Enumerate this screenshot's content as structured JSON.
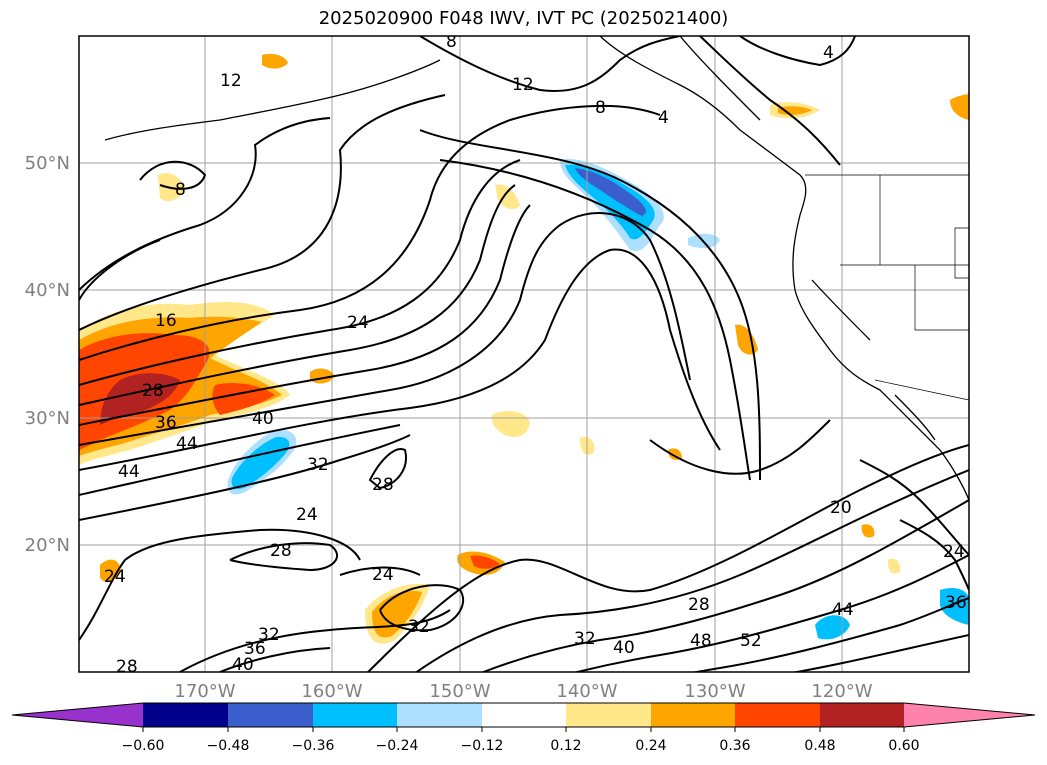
{
  "title": "2025020900 F048 IWV, IVT PC (2025021400)",
  "lat_labels": [
    "50°N",
    "40°N",
    "30°N",
    "20°N"
  ],
  "lon_labels": [
    "170°W",
    "160°W",
    "150°W",
    "140°W",
    "130°W",
    "120°W"
  ],
  "colorbar": {
    "colors": [
      "#9932CC",
      "#00008B",
      "#3A5FCD",
      "#00BFFF",
      "#ADDFFF",
      "#FFFFFF",
      "#FFE78A",
      "#FFA500",
      "#FF4500",
      "#B22222",
      "#FF82AB"
    ],
    "ticks": [
      "−0.60",
      "−0.48",
      "−0.36",
      "−0.24",
      "−0.12",
      "0.12",
      "0.24",
      "0.36",
      "0.48",
      "0.60"
    ]
  },
  "contour_labels": [
    "12",
    "12",
    "8",
    "4",
    "4",
    "8",
    "8",
    "16",
    "24",
    "28",
    "36",
    "40",
    "44",
    "44",
    "32",
    "28",
    "24",
    "28",
    "24",
    "24",
    "32",
    "32",
    "36",
    "40",
    "28",
    "28",
    "32",
    "40",
    "48",
    "52",
    "44",
    "20",
    "24",
    "36"
  ]
}
